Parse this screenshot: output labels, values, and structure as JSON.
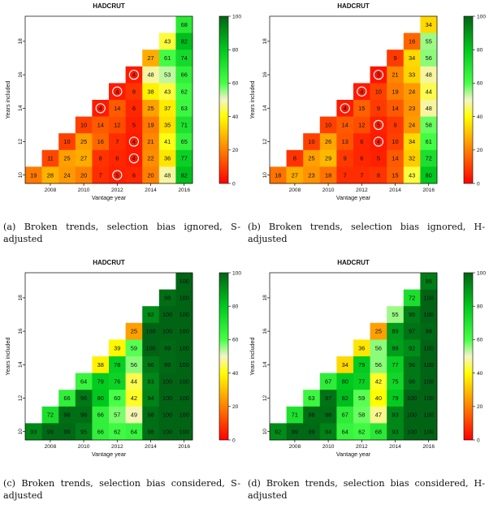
{
  "chart_data": [
    {
      "type": "heatmap",
      "title": "HADCRUT",
      "xlabel": "Vantage year",
      "ylabel": "Years included",
      "caption": "(a) Broken trends, selection bias ignored, S-adjusted",
      "x": [
        2007,
        2008,
        2009,
        2010,
        2011,
        2012,
        2013,
        2014,
        2015,
        2016
      ],
      "y": [
        10,
        11,
        12,
        13,
        14,
        15,
        16,
        17,
        18,
        19
      ],
      "x_ticks": [
        2008,
        2010,
        2012,
        2014,
        2016
      ],
      "y_ticks": [
        10,
        12,
        14,
        16,
        18
      ],
      "color_scale": {
        "min": 0,
        "max": 100,
        "ticks": [
          0,
          20,
          40,
          60,
          80,
          100
        ]
      },
      "rows": [
        {
          "years": 19,
          "values": [
            null,
            null,
            null,
            null,
            null,
            null,
            null,
            null,
            null,
            68
          ]
        },
        {
          "years": 18,
          "values": [
            null,
            null,
            null,
            null,
            null,
            null,
            null,
            null,
            43,
            82
          ]
        },
        {
          "years": 17,
          "values": [
            null,
            null,
            null,
            null,
            null,
            null,
            null,
            27,
            61,
            74
          ]
        },
        {
          "years": 16,
          "values": [
            null,
            null,
            null,
            null,
            null,
            null,
            4,
            48,
            53,
            66
          ]
        },
        {
          "years": 15,
          "values": [
            null,
            null,
            null,
            null,
            null,
            4,
            8,
            38,
            43,
            62
          ]
        },
        {
          "years": 14,
          "values": [
            null,
            null,
            null,
            null,
            4,
            14,
            6,
            25,
            37,
            63
          ]
        },
        {
          "years": 13,
          "values": [
            null,
            null,
            null,
            10,
            14,
            12,
            5,
            19,
            35,
            71
          ]
        },
        {
          "years": 12,
          "values": [
            null,
            null,
            10,
            25,
            16,
            7,
            4,
            21,
            41,
            65
          ]
        },
        {
          "years": 11,
          "values": [
            null,
            11,
            25,
            27,
            8,
            6,
            4,
            22,
            36,
            77
          ]
        },
        {
          "years": 10,
          "values": [
            19,
            28,
            24,
            20,
            7,
            5,
            6,
            20,
            48,
            82
          ]
        }
      ],
      "circled": [
        [
          16,
          2013
        ],
        [
          15,
          2012
        ],
        [
          14,
          2011
        ],
        [
          12,
          2013
        ],
        [
          11,
          2013
        ],
        [
          10,
          2012
        ]
      ]
    },
    {
      "type": "heatmap",
      "title": "HADCRUT",
      "xlabel": "Vantage year",
      "ylabel": "Years included",
      "caption": "(b) Broken trends, selection bias ignored, H-adjusted",
      "x": [
        2007,
        2008,
        2009,
        2010,
        2011,
        2012,
        2013,
        2014,
        2015,
        2016
      ],
      "y": [
        10,
        11,
        12,
        13,
        14,
        15,
        16,
        17,
        18,
        19
      ],
      "x_ticks": [
        2008,
        2010,
        2012,
        2014,
        2016
      ],
      "y_ticks": [
        10,
        12,
        14,
        16,
        18
      ],
      "color_scale": {
        "min": 0,
        "max": 100,
        "ticks": [
          0,
          20,
          40,
          60,
          80,
          100
        ]
      },
      "rows": [
        {
          "years": 19,
          "values": [
            null,
            null,
            null,
            null,
            null,
            null,
            null,
            null,
            null,
            34
          ]
        },
        {
          "years": 18,
          "values": [
            null,
            null,
            null,
            null,
            null,
            null,
            null,
            null,
            16,
            55
          ]
        },
        {
          "years": 17,
          "values": [
            null,
            null,
            null,
            null,
            null,
            null,
            null,
            9,
            34,
            56
          ]
        },
        {
          "years": 16,
          "values": [
            null,
            null,
            null,
            null,
            null,
            null,
            3,
            21,
            33,
            48
          ]
        },
        {
          "years": 15,
          "values": [
            null,
            null,
            null,
            null,
            null,
            4,
            10,
            19,
            24,
            44
          ]
        },
        {
          "years": 14,
          "values": [
            null,
            null,
            null,
            null,
            4,
            15,
            9,
            14,
            23,
            48
          ]
        },
        {
          "years": 13,
          "values": [
            null,
            null,
            null,
            10,
            14,
            12,
            5,
            9,
            24,
            58
          ]
        },
        {
          "years": 12,
          "values": [
            null,
            null,
            10,
            26,
            13,
            6,
            4,
            10,
            34,
            61
          ]
        },
        {
          "years": 11,
          "values": [
            null,
            8,
            25,
            29,
            9,
            6,
            5,
            14,
            32,
            72
          ]
        },
        {
          "years": 10,
          "values": [
            18,
            27,
            23,
            18,
            7,
            7,
            8,
            15,
            43,
            80
          ]
        }
      ],
      "circled": [
        [
          16,
          2013
        ],
        [
          15,
          2012
        ],
        [
          14,
          2011
        ],
        [
          13,
          2013
        ],
        [
          12,
          2013
        ]
      ]
    },
    {
      "type": "heatmap",
      "title": "HADCRUT",
      "xlabel": "Vantage year",
      "ylabel": "Years included",
      "caption": "(c) Broken trends, selection bias considered, S-adjusted",
      "x": [
        2007,
        2008,
        2009,
        2010,
        2011,
        2012,
        2013,
        2014,
        2015,
        2016
      ],
      "y": [
        10,
        11,
        12,
        13,
        14,
        15,
        16,
        17,
        18,
        19
      ],
      "x_ticks": [
        2008,
        2010,
        2012,
        2014,
        2016
      ],
      "y_ticks": [
        10,
        12,
        14,
        16,
        18
      ],
      "color_scale": {
        "min": 0,
        "max": 100,
        "ticks": [
          0,
          20,
          40,
          60,
          80,
          100
        ]
      },
      "rows": [
        {
          "years": 19,
          "values": [
            null,
            null,
            null,
            null,
            null,
            null,
            null,
            null,
            null,
            100
          ]
        },
        {
          "years": 18,
          "values": [
            null,
            null,
            null,
            null,
            null,
            null,
            null,
            null,
            98,
            100
          ]
        },
        {
          "years": 17,
          "values": [
            null,
            null,
            null,
            null,
            null,
            null,
            null,
            92,
            100,
            100
          ]
        },
        {
          "years": 16,
          "values": [
            null,
            null,
            null,
            null,
            null,
            null,
            25,
            100,
            100,
            100
          ]
        },
        {
          "years": 15,
          "values": [
            null,
            null,
            null,
            null,
            null,
            39,
            59,
            100,
            99,
            100
          ]
        },
        {
          "years": 14,
          "values": [
            null,
            null,
            null,
            null,
            38,
            78,
            56,
            96,
            99,
            100
          ]
        },
        {
          "years": 13,
          "values": [
            null,
            null,
            null,
            64,
            79,
            76,
            44,
            93,
            100,
            100
          ]
        },
        {
          "years": 12,
          "values": [
            null,
            null,
            66,
            96,
            80,
            60,
            42,
            94,
            100,
            100
          ]
        },
        {
          "years": 11,
          "values": [
            null,
            72,
            98,
            98,
            66,
            57,
            49,
            98,
            100,
            100
          ]
        },
        {
          "years": 10,
          "values": [
            93,
            99,
            99,
            95,
            66,
            62,
            64,
            98,
            100,
            100
          ]
        }
      ],
      "circled": []
    },
    {
      "type": "heatmap",
      "title": "HADCRUT",
      "xlabel": "Vantage year",
      "ylabel": "Years included",
      "caption": "(d) Broken trends, selection bias considered, H-adjusted",
      "x": [
        2007,
        2008,
        2009,
        2010,
        2011,
        2012,
        2013,
        2014,
        2015,
        2016
      ],
      "y": [
        10,
        11,
        12,
        13,
        14,
        15,
        16,
        17,
        18,
        19
      ],
      "x_ticks": [
        2008,
        2010,
        2012,
        2014,
        2016
      ],
      "y_ticks": [
        10,
        12,
        14,
        16,
        18
      ],
      "color_scale": {
        "min": 0,
        "max": 100,
        "ticks": [
          0,
          20,
          40,
          60,
          80,
          100
        ]
      },
      "rows": [
        {
          "years": 19,
          "values": [
            null,
            null,
            null,
            null,
            null,
            null,
            null,
            null,
            null,
            95
          ]
        },
        {
          "years": 18,
          "values": [
            null,
            null,
            null,
            null,
            null,
            null,
            null,
            null,
            72,
            100
          ]
        },
        {
          "years": 17,
          "values": [
            null,
            null,
            null,
            null,
            null,
            null,
            null,
            55,
            95,
            100
          ]
        },
        {
          "years": 16,
          "values": [
            null,
            null,
            null,
            null,
            null,
            null,
            25,
            89,
            97,
            99
          ]
        },
        {
          "years": 15,
          "values": [
            null,
            null,
            null,
            null,
            null,
            36,
            56,
            88,
            92,
            100
          ]
        },
        {
          "years": 14,
          "values": [
            null,
            null,
            null,
            null,
            34,
            79,
            56,
            77,
            96,
            100
          ]
        },
        {
          "years": 13,
          "values": [
            null,
            null,
            null,
            67,
            80,
            77,
            42,
            75,
            96,
            100
          ]
        },
        {
          "years": 12,
          "values": [
            null,
            null,
            63,
            97,
            82,
            59,
            40,
            79,
            100,
            100
          ]
        },
        {
          "years": 11,
          "values": [
            null,
            71,
            98,
            98,
            67,
            58,
            47,
            93,
            100,
            100
          ]
        },
        {
          "years": 10,
          "values": [
            92,
            99,
            99,
            94,
            64,
            62,
            68,
            93,
            100,
            100
          ]
        }
      ],
      "circled": []
    }
  ]
}
